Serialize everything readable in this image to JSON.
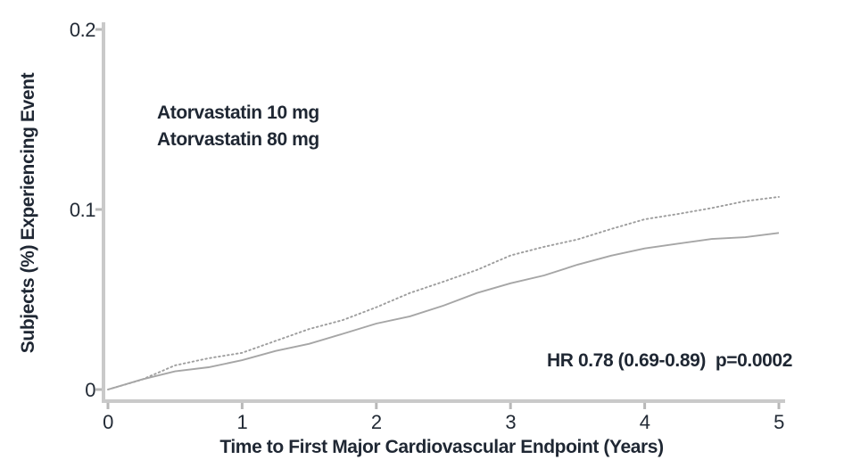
{
  "chart_data": {
    "type": "line",
    "title": "",
    "xlabel": "Time to First Major Cardiovascular Endpoint (Years)",
    "ylabel": "Subjects (%) Experiencing Event",
    "xlim": [
      0,
      5
    ],
    "ylim": [
      0,
      0.2
    ],
    "x_ticks": [
      0,
      1,
      2,
      3,
      4,
      5
    ],
    "x_tick_labels": [
      "0",
      "1",
      "2",
      "3",
      "4",
      "5"
    ],
    "y_ticks": [
      0,
      0.1,
      0.2
    ],
    "y_tick_labels": [
      "0",
      "0.1",
      "0.2"
    ],
    "grid": false,
    "legend_position": "upper-left-inside",
    "annotation": "HR 0.78 (0.69-0.89)  p=0.0002",
    "x": [
      0,
      0.25,
      0.5,
      0.75,
      1,
      1.25,
      1.5,
      1.75,
      2,
      2.25,
      2.5,
      2.75,
      3,
      3.25,
      3.5,
      3.75,
      4,
      4.25,
      4.5,
      4.75,
      5
    ],
    "series": [
      {
        "name": "Atorvastatin 10 mg",
        "style": "dotted",
        "color": "#9e9e9e",
        "values": [
          0,
          0.006,
          0.013,
          0.017,
          0.021,
          0.027,
          0.033,
          0.039,
          0.046,
          0.053,
          0.06,
          0.067,
          0.074,
          0.079,
          0.084,
          0.089,
          0.094,
          0.098,
          0.101,
          0.104,
          0.107
        ]
      },
      {
        "name": "Atorvastatin 80 mg",
        "style": "solid",
        "color": "#a6a6a6",
        "values": [
          0,
          0.005,
          0.01,
          0.013,
          0.016,
          0.021,
          0.026,
          0.031,
          0.036,
          0.041,
          0.047,
          0.053,
          0.059,
          0.064,
          0.069,
          0.074,
          0.079,
          0.081,
          0.083,
          0.085,
          0.087
        ]
      }
    ],
    "colors": {
      "axis": "#c9c9c9",
      "tick": "#b8b8b8",
      "text": "#1f2733"
    }
  }
}
